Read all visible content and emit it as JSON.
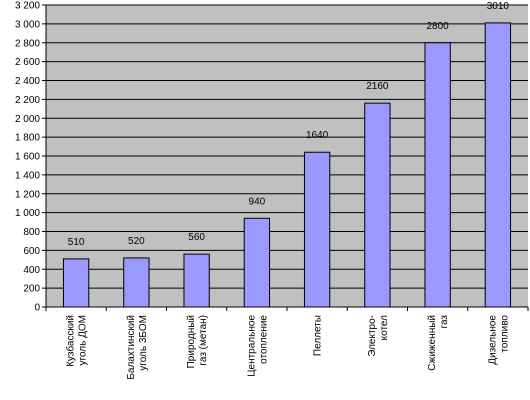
{
  "chart_data": {
    "type": "bar",
    "title": "",
    "xlabel": "",
    "ylabel": "",
    "ylim": [
      0,
      3200
    ],
    "ytick_step": 200,
    "ytick_labels": [
      "0",
      "200",
      "400",
      "600",
      "800",
      "1 000",
      "1 200",
      "1 400",
      "1 600",
      "1 800",
      "2 000",
      "2 200",
      "2 400",
      "2 600",
      "2 800",
      "3 000",
      "3 200"
    ],
    "grid": true,
    "legend": "none",
    "categories": [
      [
        "Кузбасский",
        "уголь ДОМ"
      ],
      [
        "Балахтинский",
        "уголь 3БОМ"
      ],
      [
        "Природный",
        "газ (метан)"
      ],
      [
        "Центральное",
        "отопление"
      ],
      [
        "Пеллеты"
      ],
      [
        "Электро-",
        "котел"
      ],
      [
        "Сжиженный",
        "газ"
      ],
      [
        "Дизельное",
        "топливо"
      ]
    ],
    "values": [
      510,
      520,
      560,
      940,
      1640,
      2160,
      2800,
      3010
    ],
    "data_labels": [
      "510",
      "520",
      "560",
      "940",
      "1640",
      "2160",
      "2800",
      "3010"
    ],
    "colors": {
      "plot_bg": "#c0c0c0",
      "bar_fill": "#9999ff",
      "bar_stroke": "#000000",
      "grid": "#000000"
    }
  }
}
